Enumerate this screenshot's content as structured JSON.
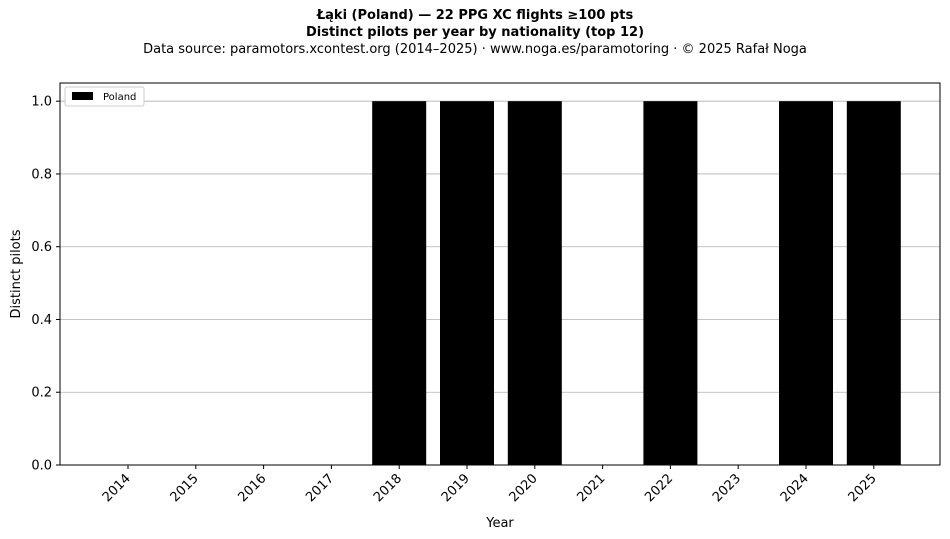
{
  "chart_data": {
    "type": "bar",
    "title": "Łąki (Poland)  —  22 PPG XC flights ≥100 pts",
    "subtitle": "Distinct pilots per year by nationality (top 12)",
    "source_note": "Data source: paramotors.xcontest.org (2014–2025)  ·  www.noga.es/paramotoring  ·  © 2025 Rafał Noga",
    "xlabel": "Year",
    "ylabel": "Distinct pilots",
    "categories": [
      "2014",
      "2015",
      "2016",
      "2017",
      "2018",
      "2019",
      "2020",
      "2021",
      "2022",
      "2023",
      "2024",
      "2025"
    ],
    "series": [
      {
        "name": "Poland",
        "color": "#000000",
        "values": [
          0,
          0,
          0,
          0,
          1,
          1,
          1,
          0,
          1,
          0,
          1,
          1
        ]
      }
    ],
    "ylim": [
      0,
      1.05
    ],
    "yticks": [
      "0.0",
      "0.2",
      "0.4",
      "0.6",
      "0.8",
      "1.0"
    ],
    "grid": "horizontal",
    "legend_position": "top-left"
  }
}
